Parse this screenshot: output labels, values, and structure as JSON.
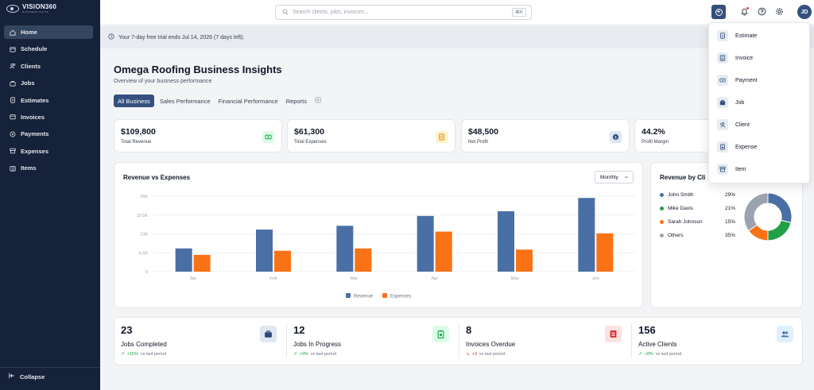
{
  "app": {
    "name": "VISION360",
    "tagline": "BUSINESS SUITE"
  },
  "sidebar": {
    "items": [
      {
        "label": "Home",
        "icon": "home-icon",
        "active": true
      },
      {
        "label": "Schedule",
        "icon": "calendar-icon"
      },
      {
        "label": "Clients",
        "icon": "users-icon"
      },
      {
        "label": "Jobs",
        "icon": "briefcase-icon"
      },
      {
        "label": "Estimates",
        "icon": "document-icon"
      },
      {
        "label": "Invoices",
        "icon": "invoice-icon"
      },
      {
        "label": "Payments",
        "icon": "coin-icon"
      },
      {
        "label": "Expenses",
        "icon": "receipt-icon"
      },
      {
        "label": "Items",
        "icon": "box-icon"
      }
    ],
    "collapse_label": "Collapse"
  },
  "topbar": {
    "search_placeholder": "Search clients, jobs, invoices...",
    "search_shortcut": "⌘K",
    "avatar_initials": "JD"
  },
  "banner": {
    "text": "Your 7-day free trial ends Jul 14, 2026 (7 days left)."
  },
  "page": {
    "title": "Omega Roofing Business Insights",
    "subtitle": "Overview of your business performance",
    "tabs": [
      "All Business",
      "Sales Performance",
      "Financial Performance",
      "Reports"
    ]
  },
  "kpis": [
    {
      "value": "$109,800",
      "label": "Total Revenue",
      "icon": "money-icon",
      "color": "#16a34a",
      "bg": "#dcfce7"
    },
    {
      "value": "$61,300",
      "label": "Total Expenses",
      "icon": "receipt-icon",
      "color": "#d97706",
      "bg": "#fef3c7"
    },
    {
      "value": "$48,500",
      "label": "Net Profit",
      "icon": "dollar-icon",
      "color": "#2f4a7a",
      "bg": "#e0e7f3"
    },
    {
      "value": "44.2%",
      "label": "Profit Margin",
      "icon": "",
      "color": "",
      "bg": ""
    }
  ],
  "revenue_chart": {
    "title": "Revenue vs Expenses",
    "period": "Monthly",
    "colors": {
      "revenue": "#4a6fa5",
      "expenses": "#f97316"
    }
  },
  "chart_data": [
    {
      "type": "bar",
      "title": "Revenue vs Expenses",
      "categories": [
        "Jan",
        "Feb",
        "Mar",
        "Apr",
        "May",
        "Jun"
      ],
      "series": [
        {
          "name": "Revenue",
          "values": [
            8000,
            14500,
            15800,
            19200,
            20800,
            25400
          ]
        },
        {
          "name": "Expenses",
          "values": [
            5800,
            7200,
            8000,
            13800,
            7600,
            13200
          ]
        }
      ],
      "yticks": [
        "0",
        "6.5K",
        "13K",
        "19.5K",
        "26K"
      ],
      "ylim": [
        0,
        26000
      ],
      "grid": true,
      "legend": "bottom"
    },
    {
      "type": "pie",
      "title": "Revenue by Cli",
      "labels": [
        "John Smith",
        "Mike Davis",
        "Sarah Johnson",
        "Others"
      ],
      "values": [
        29,
        21,
        15,
        35
      ],
      "pct_labels": [
        "29%",
        "21%",
        "15%",
        "35%"
      ],
      "colors": [
        "#4a6fa5",
        "#22a045",
        "#f97316",
        "#9ca3af"
      ]
    }
  ],
  "stats": [
    {
      "value": "23",
      "label": "Jobs Completed",
      "trend": "+15%",
      "trend_dir": "up",
      "period": "vs last period",
      "icon": "briefcase-icon",
      "color": "#2f4a7a",
      "bg": "#e0e7f3"
    },
    {
      "value": "12",
      "label": "Jobs In Progress",
      "trend": "+9%",
      "trend_dir": "up",
      "period": "vs last period",
      "icon": "clipboard-icon",
      "color": "#16a34a",
      "bg": "#dcfce7"
    },
    {
      "value": "8",
      "label": "Invoices Overdue",
      "trend": "+3",
      "trend_dir": "down",
      "period": "vs last period",
      "icon": "invoice-icon",
      "color": "#dc2626",
      "bg": "#fee2e2"
    },
    {
      "value": "156",
      "label": "Active Clients",
      "trend": "+8%",
      "trend_dir": "up",
      "period": "vs last period",
      "icon": "users-icon",
      "color": "#4a6fa5",
      "bg": "#e0effb"
    }
  ],
  "create_menu": {
    "items": [
      "Estimate",
      "Invoice",
      "Payment",
      "Job",
      "Client",
      "Expense",
      "Item"
    ]
  }
}
